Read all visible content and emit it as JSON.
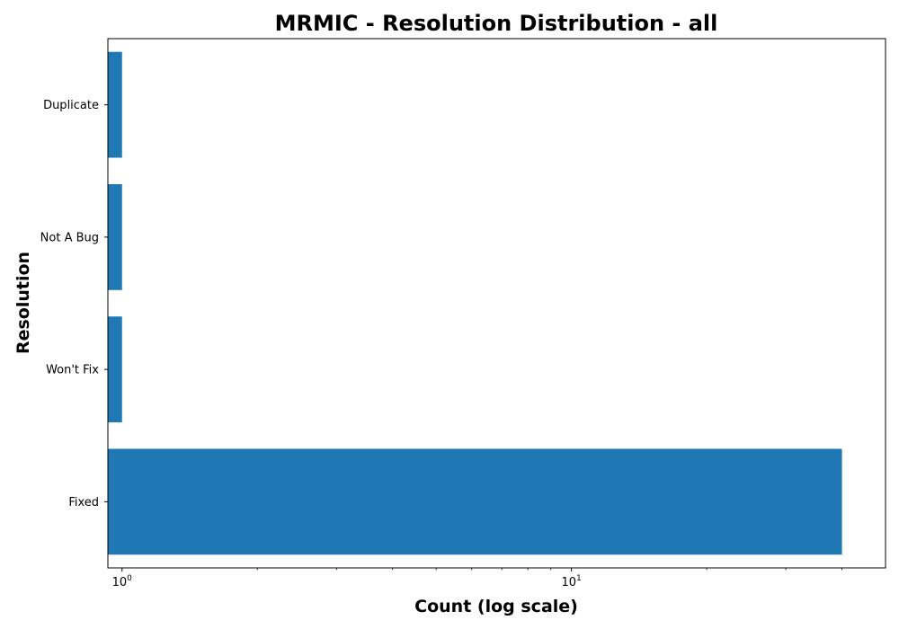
{
  "chart_data": {
    "type": "bar",
    "orientation": "horizontal",
    "title": "MRMIC - Resolution Distribution - all",
    "xlabel": "Count (log scale)",
    "ylabel": "Resolution",
    "xscale": "log",
    "xlim": [
      0.93,
      50
    ],
    "categories": [
      "Fixed",
      "Won't Fix",
      "Not A Bug",
      "Duplicate"
    ],
    "values": [
      40,
      1,
      1,
      1
    ],
    "x_major_ticks": [
      {
        "base": "10",
        "exp": "0",
        "value": 1
      },
      {
        "base": "10",
        "exp": "1",
        "value": 10
      }
    ],
    "x_minor_ticks": [
      2,
      3,
      4,
      5,
      6,
      7,
      8,
      9,
      20,
      30,
      40
    ],
    "grid": false,
    "legend": "none",
    "bar_color": "#1f77b4"
  }
}
